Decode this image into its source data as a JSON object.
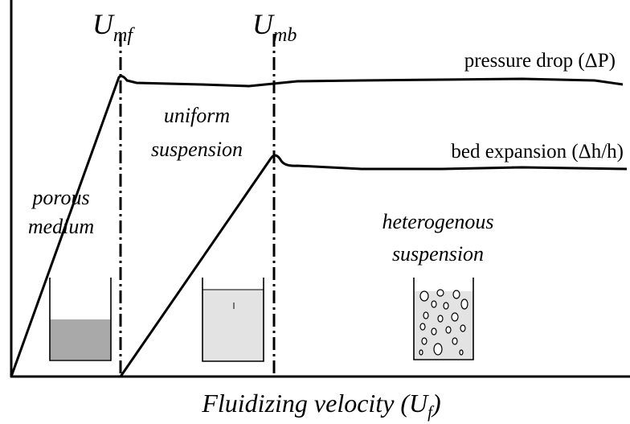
{
  "markers": [
    {
      "symbol": "U",
      "subscript": "mf"
    },
    {
      "symbol": "U",
      "subscript": "mb"
    }
  ],
  "curves": [
    {
      "label": "pressure drop (ΔP)"
    },
    {
      "label": "bed expansion (Δh/h)"
    }
  ],
  "regions": [
    {
      "lines": [
        "porous",
        "medium"
      ]
    },
    {
      "lines": [
        "uniform",
        "suspension"
      ]
    },
    {
      "lines": [
        "heterogenous",
        "suspension"
      ]
    }
  ],
  "x_axis": {
    "label": "Fluidizing velocity (U",
    "subscript": "f",
    "suffix": ")"
  }
}
